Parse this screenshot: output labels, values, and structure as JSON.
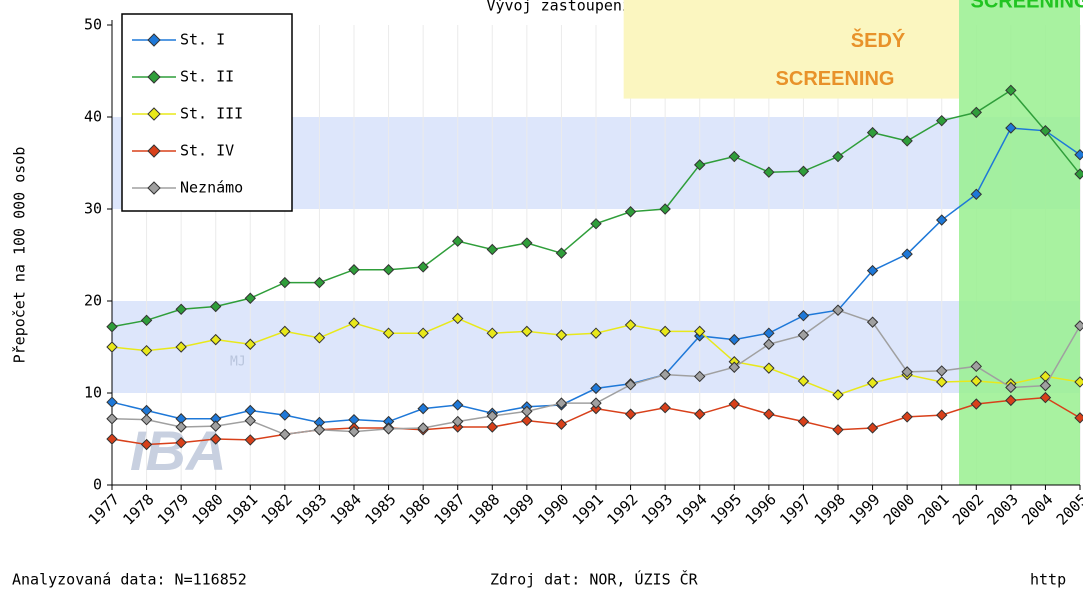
{
  "chart_data": {
    "type": "line",
    "title": "Vývoj zastoupení klinických stadií",
    "ylabel": "Přepočet na 100 000 osob",
    "x": [
      1977,
      1978,
      1979,
      1980,
      1981,
      1982,
      1983,
      1984,
      1985,
      1986,
      1987,
      1988,
      1989,
      1990,
      1991,
      1992,
      1993,
      1994,
      1995,
      1996,
      1997,
      1998,
      1999,
      2000,
      2001,
      2002,
      2003,
      2004,
      2005
    ],
    "xlim": [
      1977,
      2005
    ],
    "ylim": [
      0,
      50
    ],
    "yticks": [
      0,
      10,
      20,
      30,
      40,
      50
    ],
    "grid": true,
    "legend": "upper left",
    "bands": {
      "color": "#dde6fb",
      "ranges": [
        [
          10,
          20
        ],
        [
          30,
          40
        ]
      ]
    },
    "regions": [
      {
        "label": "ŠEDÝ\nSCREENING",
        "color": "#fbf6c0",
        "text_color": "#e8922a",
        "x": [
          1991.8,
          2001.5
        ],
        "y": [
          42,
          50
        ]
      },
      {
        "label": "SCREENING",
        "color": "#99f08f",
        "text_color": "#22c422",
        "x": [
          2001.5,
          2005
        ],
        "y": [
          0,
          50
        ]
      }
    ],
    "series": [
      {
        "name": "St. I",
        "color": "#1e78d8",
        "values": [
          9.0,
          8.1,
          7.2,
          7.2,
          8.1,
          7.6,
          6.8,
          7.1,
          6.9,
          8.3,
          8.7,
          7.8,
          8.5,
          8.7,
          10.5,
          11.0,
          12.0,
          16.2,
          15.8,
          16.5,
          18.4,
          19.0,
          23.3,
          25.1,
          28.8,
          31.6,
          38.8,
          38.5,
          35.9
        ]
      },
      {
        "name": "St. II",
        "color": "#2f9e3a",
        "values": [
          17.2,
          17.9,
          19.1,
          19.4,
          20.3,
          22.0,
          22.0,
          23.4,
          23.4,
          23.7,
          26.5,
          25.6,
          26.3,
          25.2,
          28.4,
          29.7,
          30.0,
          34.8,
          35.7,
          34.0,
          34.1,
          35.7,
          38.3,
          37.4,
          39.6,
          40.5,
          42.9,
          38.5,
          33.8
        ]
      },
      {
        "name": "St. III",
        "color": "#e8e81a",
        "values": [
          15.0,
          14.6,
          15.0,
          15.8,
          15.3,
          16.7,
          16.0,
          17.6,
          16.5,
          16.5,
          18.1,
          16.5,
          16.7,
          16.3,
          16.5,
          17.4,
          16.7,
          16.7,
          13.4,
          12.7,
          11.3,
          9.8,
          11.1,
          12.0,
          11.2,
          11.3,
          11.0,
          11.8,
          11.2
        ]
      },
      {
        "name": "St. IV",
        "color": "#d8401a",
        "values": [
          5.0,
          4.4,
          4.6,
          5.0,
          4.9,
          5.5,
          6.0,
          6.2,
          6.2,
          6.0,
          6.3,
          6.3,
          7.0,
          6.6,
          8.3,
          7.7,
          8.4,
          7.7,
          8.8,
          7.7,
          6.9,
          6.0,
          6.2,
          7.4,
          7.6,
          8.8,
          9.2,
          9.5,
          7.3
        ]
      },
      {
        "name": "Neznámo",
        "color": "#a0a0a0",
        "values": [
          7.2,
          7.1,
          6.3,
          6.4,
          7.0,
          5.5,
          6.0,
          5.8,
          6.1,
          6.2,
          6.9,
          7.5,
          8.0,
          8.9,
          8.9,
          10.9,
          12.0,
          11.8,
          12.8,
          15.3,
          16.3,
          19.0,
          17.7,
          12.3,
          12.4,
          12.9,
          10.6,
          10.8,
          17.3
        ]
      }
    ],
    "watermark": [
      "MJ",
      "IBA"
    ],
    "footer": [
      "Analyzovaná data: N=116852",
      "Zdroj dat: NOR, ÚZIS ČR",
      "http"
    ]
  }
}
